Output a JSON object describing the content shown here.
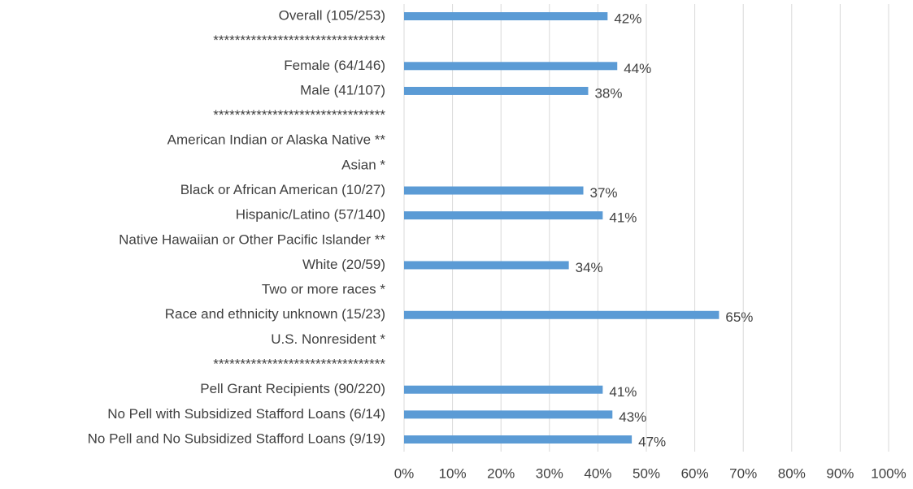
{
  "chart_data": {
    "type": "barh",
    "categories": [
      "Overall (105/253)",
      "********************************",
      "Female (64/146)",
      "Male (41/107)",
      "********************************",
      "American Indian or Alaska Native **",
      "Asian *",
      "Black or African American (10/27)",
      "Hispanic/Latino (57/140)",
      "Native Hawaiian or Other Pacific Islander **",
      "White (20/59)",
      "Two or more races *",
      "Race and ethnicity unknown (15/23)",
      "U.S. Nonresident *",
      "********************************",
      "Pell Grant Recipients (90/220)",
      "No Pell with Subsidized Stafford Loans (6/14)",
      "No Pell and No Subsidized Stafford Loans (9/19)"
    ],
    "values": [
      42,
      null,
      44,
      38,
      null,
      null,
      null,
      37,
      41,
      null,
      34,
      null,
      65,
      null,
      null,
      41,
      43,
      47
    ],
    "value_labels": [
      "42%",
      null,
      "44%",
      "38%",
      null,
      null,
      null,
      "37%",
      "41%",
      null,
      "34%",
      null,
      "65%",
      null,
      null,
      "41%",
      "43%",
      "47%"
    ],
    "color": "#5b9bd5",
    "xlim": [
      0,
      100
    ],
    "xticks": [
      {
        "value": 0,
        "label": "0%"
      },
      {
        "value": 10,
        "label": "10%"
      },
      {
        "value": 20,
        "label": "20%"
      },
      {
        "value": 30,
        "label": "30%"
      },
      {
        "value": 40,
        "label": "40%"
      },
      {
        "value": 50,
        "label": "50%"
      },
      {
        "value": 60,
        "label": "60%"
      },
      {
        "value": 70,
        "label": "70%"
      },
      {
        "value": 80,
        "label": "80%"
      },
      {
        "value": 90,
        "label": "90%"
      },
      {
        "value": 100,
        "label": "100%"
      }
    ],
    "grid": true
  }
}
